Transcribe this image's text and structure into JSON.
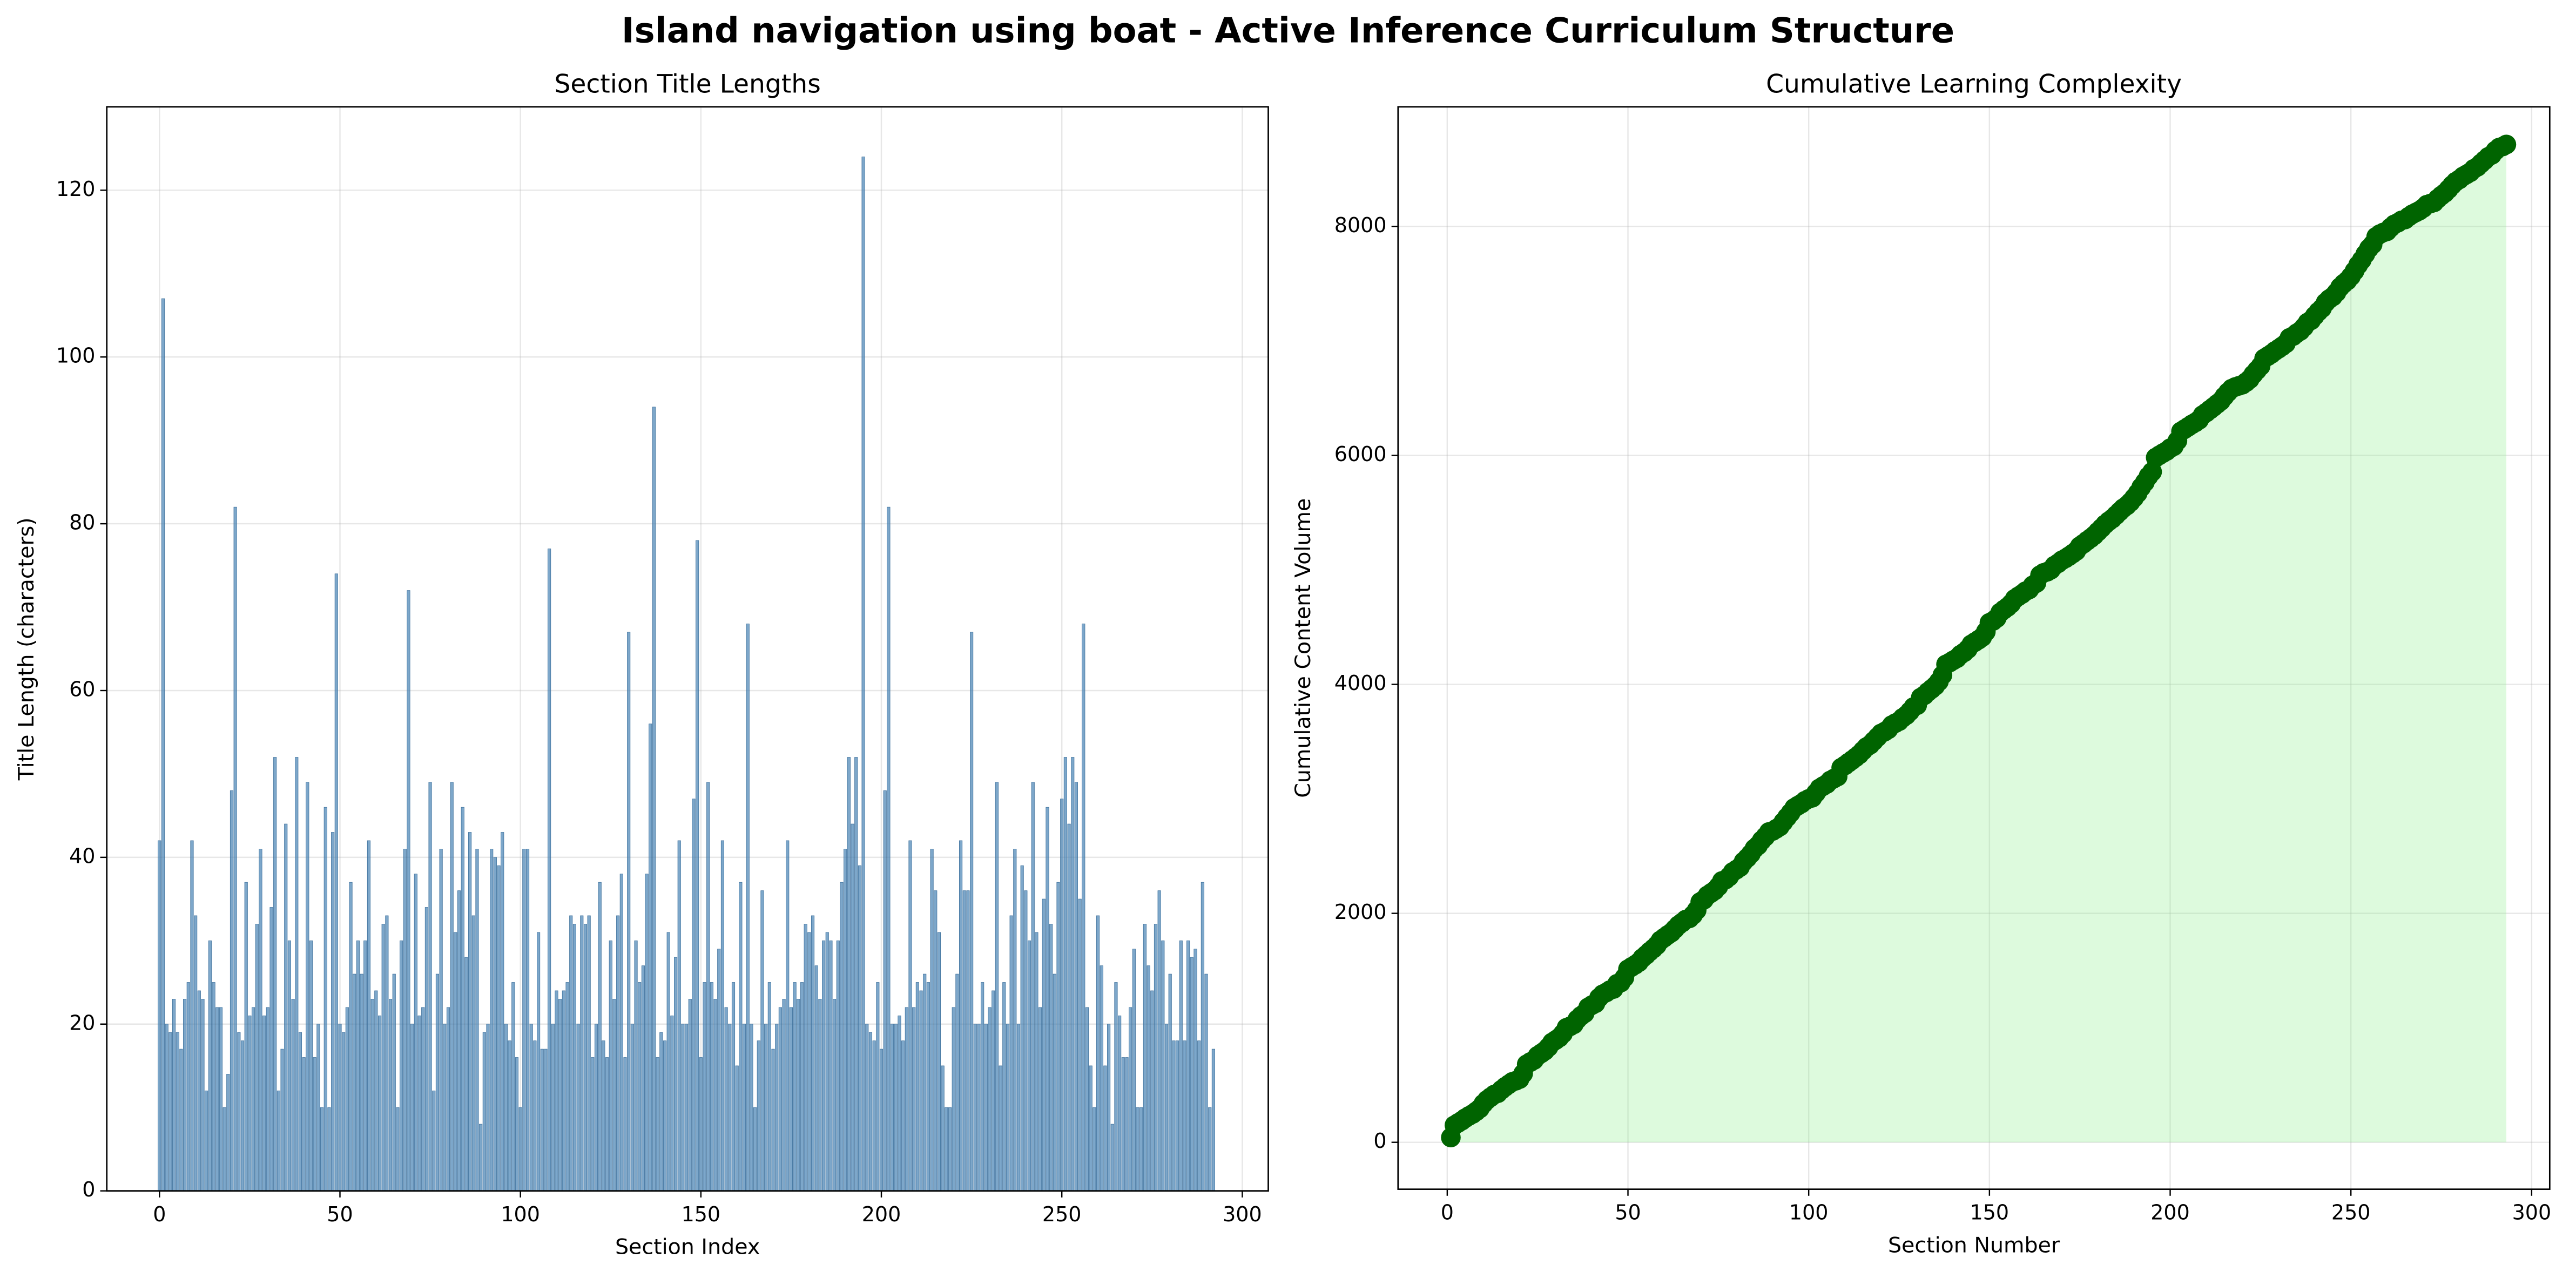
{
  "title": "Island navigation using boat - Active Inference Curriculum Structure",
  "chart_data": [
    {
      "type": "bar",
      "title": "Section Title Lengths",
      "xlabel": "Section Index",
      "ylabel": "Title Length (characters)",
      "x": [
        0,
        1,
        2,
        3,
        4,
        5,
        6,
        7,
        8,
        9,
        10,
        11,
        12,
        13,
        14,
        15,
        16,
        17,
        18,
        19,
        20,
        21,
        22,
        23,
        24,
        25,
        26,
        27,
        28,
        29,
        30,
        31,
        32,
        33,
        34,
        35,
        36,
        37,
        38,
        39,
        40,
        41,
        42,
        43,
        44,
        45,
        46,
        47,
        48,
        49,
        50,
        51,
        52,
        53,
        54,
        55,
        56,
        57,
        58,
        59,
        60,
        61,
        62,
        63,
        64,
        65,
        66,
        67,
        68,
        69,
        70,
        71,
        72,
        73,
        74,
        75,
        76,
        77,
        78,
        79,
        80,
        81,
        82,
        83,
        84,
        85,
        86,
        87,
        88,
        89,
        90,
        91,
        92,
        93,
        94,
        95,
        96,
        97,
        98,
        99,
        100,
        101,
        102,
        103,
        104,
        105,
        106,
        107,
        108,
        109,
        110,
        111,
        112,
        113,
        114,
        115,
        116,
        117,
        118,
        119,
        120,
        121,
        122,
        123,
        124,
        125,
        126,
        127,
        128,
        129,
        130,
        131,
        132,
        133,
        134,
        135,
        136,
        137,
        138,
        139,
        140,
        141,
        142,
        143,
        144,
        145,
        146,
        147,
        148,
        149,
        150,
        151,
        152,
        153,
        154,
        155,
        156,
        157,
        158,
        159,
        160,
        161,
        162,
        163,
        164,
        165,
        166,
        167,
        168,
        169,
        170,
        171,
        172,
        173,
        174,
        175,
        176,
        177,
        178,
        179,
        180,
        181,
        182,
        183,
        184,
        185,
        186,
        187,
        188,
        189,
        190,
        191,
        192,
        193,
        194,
        195,
        196,
        197,
        198,
        199,
        200,
        201,
        202,
        203,
        204,
        205,
        206,
        207,
        208,
        209,
        210,
        211,
        212,
        213,
        214,
        215,
        216,
        217,
        218,
        219,
        220,
        221,
        222,
        223,
        224,
        225,
        226,
        227,
        228,
        229,
        230,
        231,
        232,
        233,
        234,
        235,
        236,
        237,
        238,
        239,
        240,
        241,
        242,
        243,
        244,
        245,
        246,
        247,
        248,
        249,
        250,
        251,
        252,
        253,
        254,
        255,
        256,
        257,
        258,
        259,
        260,
        261,
        262,
        263,
        264,
        265,
        266,
        267,
        268,
        269,
        270,
        271,
        272,
        273,
        274,
        275,
        276,
        277,
        278,
        279,
        280,
        281,
        282,
        283,
        284,
        285,
        286,
        287,
        288,
        289,
        290,
        291,
        292
      ],
      "values": [
        42,
        107,
        20,
        19,
        23,
        19,
        17,
        23,
        25,
        42,
        33,
        24,
        23,
        12,
        30,
        25,
        22,
        22,
        10,
        14,
        48,
        82,
        19,
        18,
        37,
        21,
        22,
        32,
        41,
        21,
        22,
        34,
        52,
        12,
        17,
        44,
        30,
        23,
        52,
        19,
        16,
        49,
        30,
        16,
        20,
        10,
        46,
        10,
        43,
        74,
        20,
        19,
        22,
        37,
        26,
        30,
        26,
        30,
        42,
        23,
        24,
        21,
        32,
        33,
        23,
        26,
        10,
        30,
        41,
        72,
        20,
        38,
        21,
        22,
        34,
        49,
        12,
        26,
        41,
        20,
        22,
        49,
        31,
        36,
        46,
        28,
        43,
        33,
        41,
        8,
        19,
        20,
        41,
        40,
        39,
        43,
        20,
        18,
        25,
        16,
        10,
        41,
        41,
        20,
        18,
        31,
        17,
        17,
        77,
        20,
        24,
        23,
        24,
        25,
        33,
        32,
        20,
        33,
        32,
        33,
        16,
        20,
        37,
        18,
        16,
        30,
        23,
        33,
        38,
        16,
        67,
        20,
        30,
        25,
        27,
        38,
        56,
        94,
        16,
        19,
        18,
        31,
        21,
        28,
        42,
        20,
        20,
        23,
        47,
        78,
        16,
        25,
        49,
        25,
        23,
        29,
        42,
        22,
        20,
        25,
        15,
        37,
        20,
        68,
        20,
        10,
        18,
        36,
        20,
        25,
        17,
        20,
        22,
        23,
        42,
        22,
        25,
        23,
        25,
        32,
        31,
        33,
        27,
        23,
        30,
        31,
        30,
        23,
        30,
        37,
        41,
        52,
        44,
        52,
        39,
        124,
        20,
        19,
        18,
        25,
        17,
        48,
        82,
        20,
        20,
        21,
        18,
        22,
        42,
        22,
        25,
        24,
        26,
        25,
        41,
        36,
        31,
        15,
        10,
        10,
        22,
        26,
        42,
        36,
        36,
        67,
        20,
        20,
        25,
        20,
        22,
        24,
        49,
        15,
        25,
        20,
        33,
        41,
        20,
        39,
        36,
        30,
        49,
        31,
        22,
        35,
        46,
        32,
        26,
        37,
        47,
        52,
        44,
        52,
        49,
        35,
        68,
        22,
        15,
        10,
        33,
        27,
        15,
        20,
        8,
        25,
        21,
        16,
        16,
        22,
        29,
        10,
        10,
        32,
        27,
        24,
        32,
        36,
        30,
        20,
        26,
        18,
        18,
        30,
        18,
        30,
        28,
        29,
        18,
        37,
        26,
        10,
        17
      ],
      "color": "steelblue",
      "xlim": [
        -14.6,
        307.2
      ],
      "ylim": [
        0,
        130
      ],
      "xticks": [
        0,
        50,
        100,
        150,
        200,
        250,
        300
      ],
      "yticks": [
        0,
        20,
        40,
        60,
        80,
        100,
        120
      ],
      "grid": true
    },
    {
      "type": "cumulative",
      "title": "Cumulative Learning Complexity",
      "xlabel": "Section Number",
      "ylabel": "Cumulative Content Volume",
      "x": [
        1,
        2,
        3,
        4,
        5,
        6,
        7,
        8,
        9,
        10,
        11,
        12,
        13,
        14,
        15,
        16,
        17,
        18,
        19,
        20,
        21,
        22,
        23,
        24,
        25,
        26,
        27,
        28,
        29,
        30,
        31,
        32,
        33,
        34,
        35,
        36,
        37,
        38,
        39,
        40,
        41,
        42,
        43,
        44,
        45,
        46,
        47,
        48,
        49,
        50,
        51,
        52,
        53,
        54,
        55,
        56,
        57,
        58,
        59,
        60,
        61,
        62,
        63,
        64,
        65,
        66,
        67,
        68,
        69,
        70,
        71,
        72,
        73,
        74,
        75,
        76,
        77,
        78,
        79,
        80,
        81,
        82,
        83,
        84,
        85,
        86,
        87,
        88,
        89,
        90,
        91,
        92,
        93,
        94,
        95,
        96,
        97,
        98,
        99,
        100,
        101,
        102,
        103,
        104,
        105,
        106,
        107,
        108,
        109,
        110,
        111,
        112,
        113,
        114,
        115,
        116,
        117,
        118,
        119,
        120,
        121,
        122,
        123,
        124,
        125,
        126,
        127,
        128,
        129,
        130,
        131,
        132,
        133,
        134,
        135,
        136,
        137,
        138,
        139,
        140,
        141,
        142,
        143,
        144,
        145,
        146,
        147,
        148,
        149,
        150,
        151,
        152,
        153,
        154,
        155,
        156,
        157,
        158,
        159,
        160,
        161,
        162,
        163,
        164,
        165,
        166,
        167,
        168,
        169,
        170,
        171,
        172,
        173,
        174,
        175,
        176,
        177,
        178,
        179,
        180,
        181,
        182,
        183,
        184,
        185,
        186,
        187,
        188,
        189,
        190,
        191,
        192,
        193,
        194,
        195,
        196,
        197,
        198,
        199,
        200,
        201,
        202,
        203,
        204,
        205,
        206,
        207,
        208,
        209,
        210,
        211,
        212,
        213,
        214,
        215,
        216,
        217,
        218,
        219,
        220,
        221,
        222,
        223,
        224,
        225,
        226,
        227,
        228,
        229,
        230,
        231,
        232,
        233,
        234,
        235,
        236,
        237,
        238,
        239,
        240,
        241,
        242,
        243,
        244,
        245,
        246,
        247,
        248,
        249,
        250,
        251,
        252,
        253,
        254,
        255,
        256,
        257,
        258,
        259,
        260,
        261,
        262,
        263,
        264,
        265,
        266,
        267,
        268,
        269,
        270,
        271,
        272,
        273,
        274,
        275,
        276,
        277,
        278,
        279,
        280,
        281,
        282,
        283,
        284,
        285,
        286,
        287,
        288,
        289,
        290,
        291,
        292,
        293
      ],
      "color": "darkgreen",
      "fill_color": "lightgreen",
      "xlim": [
        -13.6,
        305
      ],
      "ylim": [
        -410,
        9045
      ],
      "xticks": [
        0,
        50,
        100,
        150,
        200,
        250,
        300
      ],
      "yticks": [
        0,
        2000,
        4000,
        6000,
        8000
      ],
      "grid": true
    }
  ]
}
